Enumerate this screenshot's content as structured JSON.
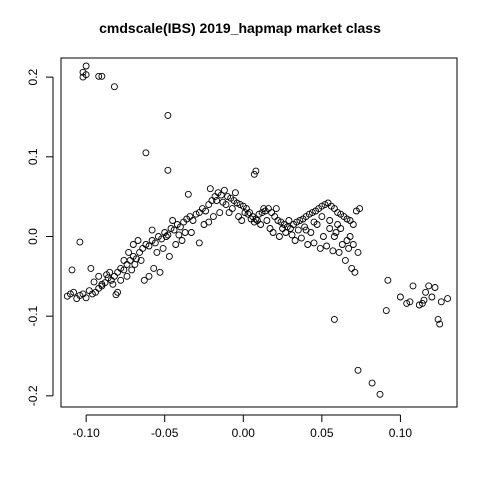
{
  "chart_data": {
    "type": "scatter",
    "title": "cmdscale(IBS) 2019_hapmap market class",
    "xlabel": "",
    "ylabel": "",
    "xlim": [
      -0.116,
      0.136
    ],
    "ylim": [
      -0.214,
      0.224
    ],
    "x_ticks": [
      -0.1,
      -0.05,
      0.0,
      0.05,
      0.1
    ],
    "x_tick_labels": [
      "-0.10",
      "-0.05",
      "0.00",
      "0.05",
      "0.10"
    ],
    "y_ticks": [
      -0.2,
      -0.1,
      0.0,
      0.1,
      0.2
    ],
    "y_tick_labels": [
      "-0.2",
      "-0.1",
      "0.0",
      "0.1",
      "0.2"
    ],
    "grid": false,
    "legend": "none",
    "marker": "open-circle",
    "marker_color": "#000000",
    "series": [
      {
        "points": [
          [
            -0.1,
            0.214
          ],
          [
            -0.102,
            0.206
          ],
          [
            -0.1,
            0.203
          ],
          [
            -0.102,
            0.2
          ],
          [
            -0.092,
            0.201
          ],
          [
            -0.09,
            0.201
          ],
          [
            -0.082,
            0.188
          ],
          [
            -0.048,
            0.152
          ],
          [
            -0.062,
            0.105
          ],
          [
            -0.048,
            0.083
          ],
          [
            -0.035,
            0.053
          ],
          [
            0.007,
            0.078
          ],
          [
            0.008,
            0.082
          ],
          [
            -0.112,
            -0.075
          ],
          [
            -0.11,
            -0.072
          ],
          [
            -0.108,
            -0.07
          ],
          [
            -0.106,
            -0.078
          ],
          [
            -0.104,
            -0.074
          ],
          [
            -0.102,
            -0.072
          ],
          [
            -0.1,
            -0.077
          ],
          [
            -0.098,
            -0.068
          ],
          [
            -0.096,
            -0.072
          ],
          [
            -0.094,
            -0.07
          ],
          [
            -0.092,
            -0.065
          ],
          [
            -0.09,
            -0.062
          ],
          [
            -0.088,
            -0.058
          ],
          [
            -0.086,
            -0.052
          ],
          [
            -0.084,
            -0.055
          ],
          [
            -0.082,
            -0.05
          ],
          [
            -0.08,
            -0.045
          ],
          [
            -0.078,
            -0.04
          ],
          [
            -0.076,
            -0.042
          ],
          [
            -0.074,
            -0.035
          ],
          [
            -0.072,
            -0.03
          ],
          [
            -0.07,
            -0.025
          ],
          [
            -0.068,
            -0.028
          ],
          [
            -0.066,
            -0.02
          ],
          [
            -0.064,
            -0.015
          ],
          [
            -0.062,
            -0.01
          ],
          [
            -0.06,
            -0.012
          ],
          [
            -0.058,
            -0.005
          ],
          [
            -0.056,
            -0.008
          ],
          [
            -0.054,
            0.0
          ],
          [
            -0.052,
            -0.003
          ],
          [
            -0.05,
            0.005
          ],
          [
            -0.048,
            0.002
          ],
          [
            -0.046,
            0.01
          ],
          [
            -0.044,
            0.008
          ],
          [
            -0.042,
            0.015
          ],
          [
            -0.04,
            0.012
          ],
          [
            -0.038,
            0.018
          ],
          [
            -0.036,
            0.022
          ],
          [
            -0.034,
            0.025
          ],
          [
            -0.032,
            0.02
          ],
          [
            -0.03,
            0.028
          ],
          [
            -0.028,
            0.03
          ],
          [
            -0.026,
            0.035
          ],
          [
            -0.024,
            0.032
          ],
          [
            -0.022,
            0.04
          ],
          [
            -0.02,
            0.045
          ],
          [
            -0.018,
            0.05
          ],
          [
            -0.016,
            0.055
          ],
          [
            -0.014,
            0.052
          ],
          [
            -0.012,
            0.058
          ],
          [
            -0.01,
            0.05
          ],
          [
            -0.008,
            0.048
          ],
          [
            -0.006,
            0.045
          ],
          [
            -0.004,
            0.042
          ],
          [
            -0.002,
            0.04
          ],
          [
            0.0,
            0.038
          ],
          [
            0.002,
            0.035
          ],
          [
            0.004,
            0.03
          ],
          [
            0.006,
            0.025
          ],
          [
            0.008,
            0.022
          ],
          [
            0.01,
            0.028
          ],
          [
            0.012,
            0.03
          ],
          [
            0.014,
            0.032
          ],
          [
            0.016,
            0.035
          ],
          [
            0.018,
            0.03
          ],
          [
            0.02,
            0.025
          ],
          [
            0.022,
            0.02
          ],
          [
            0.024,
            0.018
          ],
          [
            0.026,
            0.015
          ],
          [
            0.028,
            0.012
          ],
          [
            0.03,
            0.01
          ],
          [
            0.032,
            0.015
          ],
          [
            0.034,
            0.018
          ],
          [
            0.036,
            0.02
          ],
          [
            0.038,
            0.022
          ],
          [
            0.04,
            0.025
          ],
          [
            0.042,
            0.028
          ],
          [
            0.044,
            0.03
          ],
          [
            0.046,
            0.032
          ],
          [
            0.048,
            0.035
          ],
          [
            0.05,
            0.038
          ],
          [
            0.052,
            0.04
          ],
          [
            0.054,
            0.042
          ],
          [
            0.056,
            0.038
          ],
          [
            0.058,
            0.035
          ],
          [
            0.06,
            0.03
          ],
          [
            0.062,
            0.028
          ],
          [
            0.064,
            0.025
          ],
          [
            0.066,
            0.022
          ],
          [
            0.068,
            0.02
          ],
          [
            0.07,
            0.015
          ],
          [
            -0.109,
            -0.042
          ],
          [
            -0.104,
            -0.007
          ],
          [
            -0.097,
            -0.04
          ],
          [
            -0.095,
            -0.057
          ],
          [
            -0.092,
            -0.05
          ],
          [
            -0.09,
            -0.06
          ],
          [
            -0.087,
            -0.048
          ],
          [
            -0.085,
            -0.045
          ],
          [
            -0.083,
            -0.06
          ],
          [
            -0.08,
            -0.07
          ],
          [
            -0.081,
            -0.073
          ],
          [
            -0.078,
            -0.055
          ],
          [
            -0.076,
            -0.03
          ],
          [
            -0.074,
            -0.05
          ],
          [
            -0.073,
            -0.02
          ],
          [
            -0.071,
            -0.042
          ],
          [
            -0.07,
            -0.01
          ],
          [
            -0.069,
            -0.035
          ],
          [
            -0.067,
            -0.005
          ],
          [
            -0.065,
            -0.03
          ],
          [
            -0.063,
            -0.055
          ],
          [
            -0.06,
            -0.05
          ],
          [
            -0.058,
            0.008
          ],
          [
            -0.057,
            -0.04
          ],
          [
            -0.055,
            -0.02
          ],
          [
            -0.053,
            -0.045
          ],
          [
            -0.051,
            -0.015
          ],
          [
            -0.049,
            0.0
          ],
          [
            -0.047,
            -0.025
          ],
          [
            -0.045,
            0.02
          ],
          [
            -0.043,
            -0.01
          ],
          [
            -0.041,
            0.002
          ],
          [
            -0.039,
            -0.005
          ],
          [
            -0.037,
            0.005
          ],
          [
            -0.033,
            0.005
          ],
          [
            -0.028,
            -0.008
          ],
          [
            -0.025,
            0.015
          ],
          [
            -0.022,
            0.018
          ],
          [
            -0.021,
            0.06
          ],
          [
            -0.019,
            0.025
          ],
          [
            -0.017,
            0.045
          ],
          [
            -0.015,
            0.03
          ],
          [
            -0.013,
            0.043
          ],
          [
            -0.011,
            0.04
          ],
          [
            -0.009,
            0.03
          ],
          [
            -0.007,
            0.035
          ],
          [
            -0.005,
            0.055
          ],
          [
            -0.003,
            0.025
          ],
          [
            -0.001,
            0.02
          ],
          [
            0.001,
            0.03
          ],
          [
            0.003,
            0.028
          ],
          [
            0.005,
            0.022
          ],
          [
            0.007,
            0.018
          ],
          [
            0.009,
            0.02
          ],
          [
            0.011,
            0.015
          ],
          [
            0.013,
            0.035
          ],
          [
            0.015,
            0.02
          ],
          [
            0.017,
            0.01
          ],
          [
            0.019,
            0.005
          ],
          [
            0.021,
            0.035
          ],
          [
            0.023,
            0.0
          ],
          [
            0.025,
            0.01
          ],
          [
            0.027,
            0.005
          ],
          [
            0.029,
            0.02
          ],
          [
            0.031,
            0.002
          ],
          [
            0.033,
            -0.005
          ],
          [
            0.035,
            0.008
          ],
          [
            0.037,
            -0.002
          ],
          [
            0.039,
            0.012
          ],
          [
            0.041,
            -0.01
          ],
          [
            0.043,
            0.005
          ],
          [
            0.045,
            -0.008
          ],
          [
            0.047,
            0.015
          ],
          [
            0.049,
            -0.015
          ],
          [
            0.051,
            0.0
          ],
          [
            0.053,
            -0.012
          ],
          [
            0.055,
            0.01
          ],
          [
            0.057,
            -0.018
          ],
          [
            0.059,
            0.005
          ],
          [
            0.061,
            -0.02
          ],
          [
            0.063,
            -0.01
          ],
          [
            0.065,
            -0.03
          ],
          [
            0.067,
            -0.015
          ],
          [
            0.069,
            -0.04
          ],
          [
            0.071,
            -0.045
          ],
          [
            0.073,
            -0.02
          ],
          [
            0.055,
            0.02
          ],
          [
            0.06,
            0.015
          ],
          [
            0.05,
            0.025
          ],
          [
            0.045,
            0.018
          ],
          [
            0.04,
            0.008
          ],
          [
            0.058,
            0.0
          ],
          [
            0.062,
            0.01
          ],
          [
            0.068,
            0.0
          ],
          [
            0.066,
            -0.005
          ],
          [
            0.07,
            -0.01
          ],
          [
            0.072,
            0.032
          ],
          [
            0.074,
            0.035
          ],
          [
            0.058,
            -0.104
          ],
          [
            0.073,
            -0.168
          ],
          [
            0.082,
            -0.184
          ],
          [
            0.087,
            -0.198
          ],
          [
            0.091,
            -0.093
          ],
          [
            0.092,
            -0.055
          ],
          [
            0.1,
            -0.076
          ],
          [
            0.104,
            -0.084
          ],
          [
            0.106,
            -0.082
          ],
          [
            0.108,
            -0.062
          ],
          [
            0.112,
            -0.086
          ],
          [
            0.114,
            -0.084
          ],
          [
            0.115,
            -0.08
          ],
          [
            0.116,
            -0.07
          ],
          [
            0.118,
            -0.062
          ],
          [
            0.12,
            -0.076
          ],
          [
            0.122,
            -0.064
          ],
          [
            0.124,
            -0.104
          ],
          [
            0.125,
            -0.11
          ],
          [
            0.126,
            -0.082
          ],
          [
            0.13,
            -0.078
          ]
        ]
      }
    ]
  }
}
